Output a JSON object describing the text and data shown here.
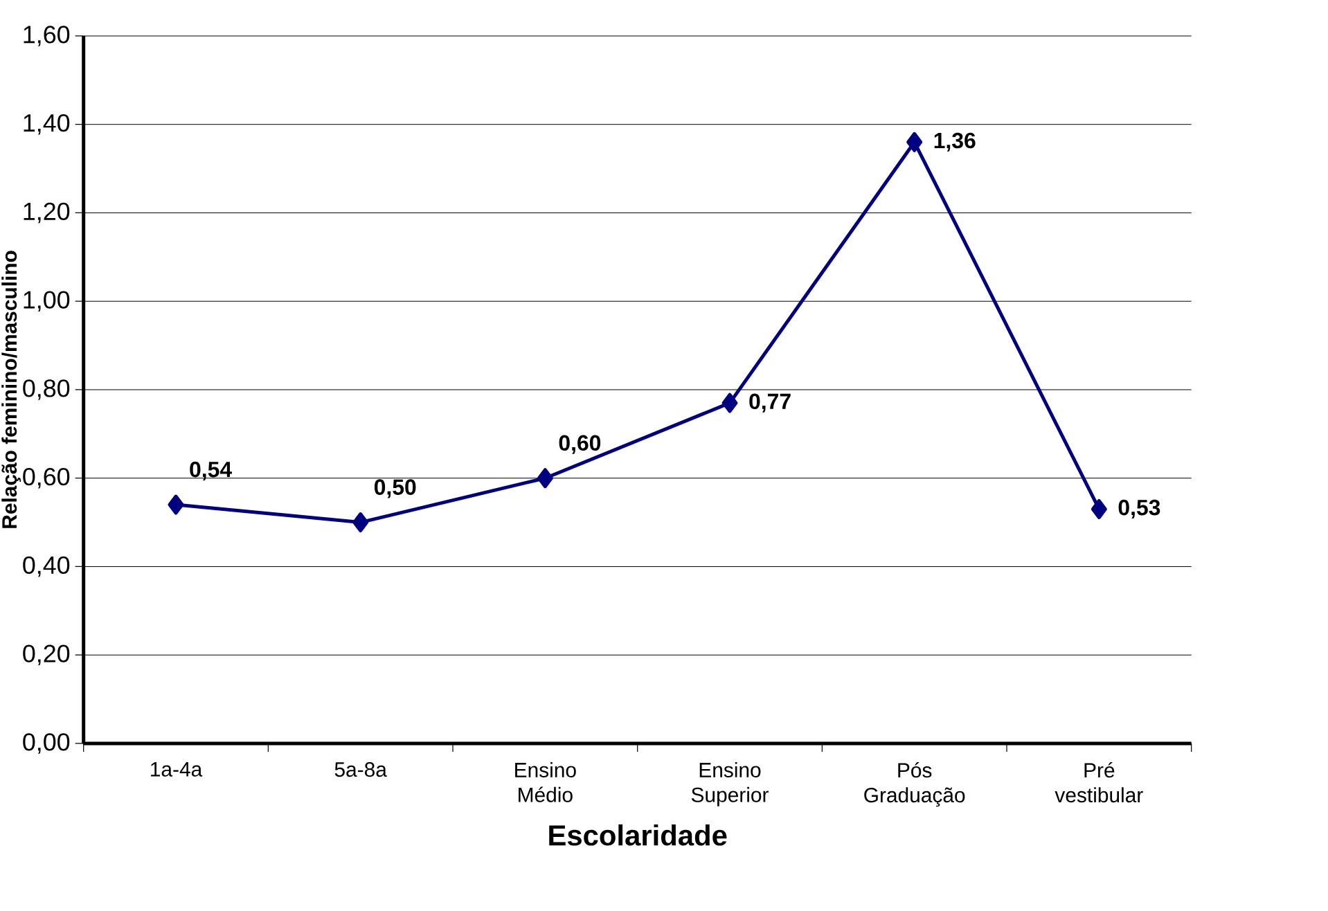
{
  "chart_data": {
    "type": "line",
    "xlabel": "Escolaridade",
    "ylabel": "Relação feminino/masculino",
    "categories": [
      "1a-4a",
      "5a-8a",
      "Ensino Médio",
      "Ensino Superior",
      "Pós Graduação",
      "Pré vestibular"
    ],
    "series": [
      {
        "color": "#000080",
        "values": [
          0.54,
          0.5,
          0.6,
          0.77,
          1.36,
          0.53
        ],
        "value_labels": [
          "0,54",
          "0,50",
          "0,60",
          "0,77",
          "1,36",
          "0,53"
        ]
      }
    ],
    "ylim": [
      0,
      1.6
    ],
    "yticks": [
      {
        "value": 0,
        "label": "0,00"
      },
      {
        "value": 0.2,
        "label": "0,20"
      },
      {
        "value": 0.4,
        "label": "0,40"
      },
      {
        "value": 0.6,
        "label": "0,60"
      },
      {
        "value": 0.8,
        "label": "0,80"
      },
      {
        "value": 1.0,
        "label": "1,00"
      },
      {
        "value": 1.2,
        "label": "1,20"
      },
      {
        "value": 1.4,
        "label": "1,40"
      },
      {
        "value": 1.6,
        "label": "1,60"
      }
    ],
    "grid": "y",
    "marker": "diamond",
    "line_style": "solid"
  }
}
